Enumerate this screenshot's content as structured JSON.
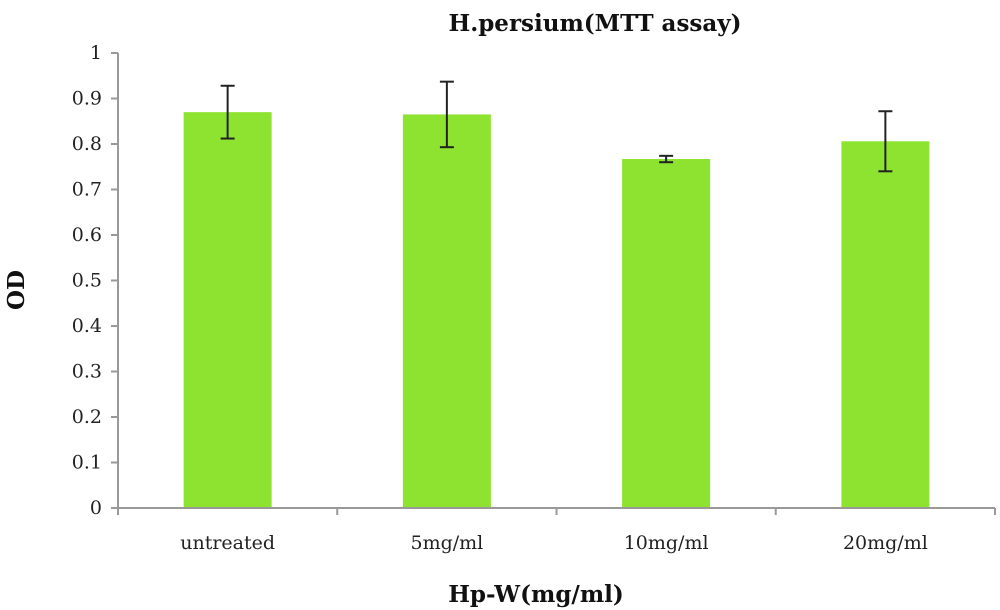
{
  "chart_data": {
    "type": "bar",
    "title": "H.persium(MTT assay)",
    "xlabel": "Hp-W(mg/ml)",
    "ylabel": "OD",
    "categories": [
      "untreated",
      "5mg/ml",
      "10mg/ml",
      "20mg/ml"
    ],
    "values": [
      0.87,
      0.865,
      0.767,
      0.806
    ],
    "error": [
      0.058,
      0.072,
      0.007,
      0.066
    ],
    "ylim": [
      0,
      1
    ],
    "yticks": [
      "0",
      "0.1",
      "0.2",
      "0.3",
      "0.4",
      "0.5",
      "0.6",
      "0.7",
      "0.8",
      "0.9",
      "1"
    ],
    "grid": false,
    "legend": "none",
    "bar_color": "#8ee330",
    "axis_color": "#999999"
  }
}
